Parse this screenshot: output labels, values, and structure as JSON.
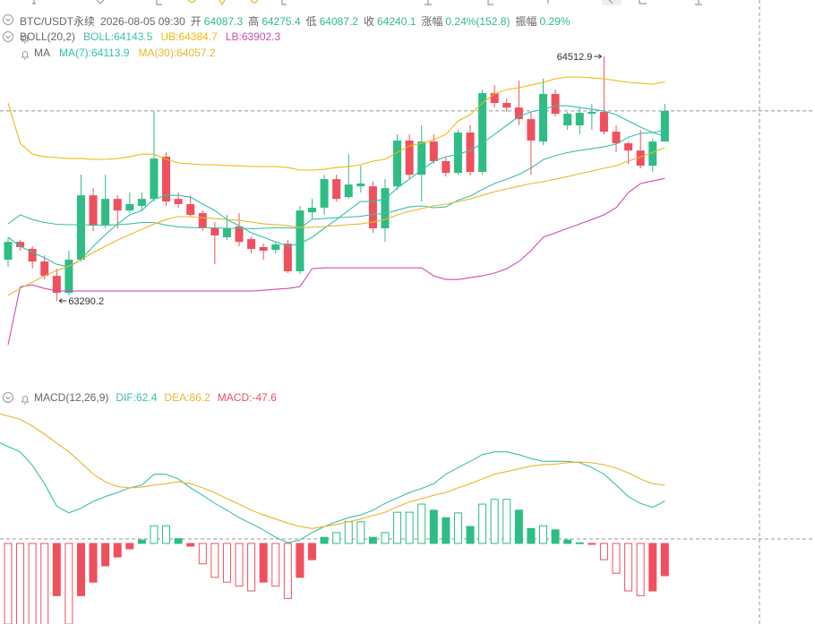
{
  "header": {
    "symbol": "BTC/USDT永续",
    "time": "2026-08-05 09:30",
    "open_label": "开",
    "open": "64087.3",
    "high_label": "高",
    "high": "64275.4",
    "low_label": "低",
    "low": "64087.2",
    "close_label": "收",
    "close": "64240.1",
    "change_label": "涨幅",
    "change": "0.24%(152.8)",
    "amplitude_label": "振幅",
    "amplitude": "0.29%"
  },
  "boll_legend": {
    "name": "BOLL(20,2)",
    "mid": "BOLL:64143.5",
    "ub": "UB:64384.7",
    "lb": "LB:63902.3"
  },
  "ma_legend": {
    "name": "MA",
    "ma7": "MA(7):64113.9",
    "ma30": "MA(30):64057.2"
  },
  "macd_legend": {
    "name": "MACD(12,26,9)",
    "dif": "DIF:62.4",
    "dea": "DEA:86.2",
    "macd": "MACD:-47.6"
  },
  "chart_data": [
    {
      "type": "candlestick",
      "up_color": "#2ebd85",
      "down_color": "#f0505e",
      "open": [
        63496,
        63585,
        63550,
        63487,
        63415,
        63330,
        63496,
        63818,
        63666,
        63800,
        63742,
        63765,
        63800,
        64011,
        63800,
        63774,
        63729,
        63653,
        63608,
        63662,
        63599,
        63559,
        63545,
        63576,
        63438,
        63733,
        63756,
        63899,
        63809,
        63863,
        63863,
        63653,
        63863,
        64092,
        63921,
        64087,
        63989,
        63930,
        64132,
        63935,
        64329,
        64280,
        64257,
        64199,
        64087,
        64325,
        64168,
        64168,
        64226,
        64235,
        64136,
        64078,
        64042,
        63966,
        64087.3
      ],
      "high": [
        63608,
        63594,
        63563,
        63518,
        63451,
        63541,
        63921,
        63854,
        63921,
        63818,
        63832,
        63832,
        64239,
        64033,
        63832,
        63818,
        63742,
        63684,
        63720,
        63729,
        63612,
        63576,
        63585,
        63594,
        63765,
        63800,
        63921,
        63921,
        64024,
        63966,
        63886,
        63899,
        64123,
        64123,
        64168,
        64123,
        64011,
        64145,
        64168,
        64347,
        64369,
        64302,
        64392,
        64235,
        64401,
        64347,
        64235,
        64257,
        64275,
        64512.9,
        64168,
        64087,
        64145,
        64101,
        64275.4
      ],
      "low": [
        63460,
        63541,
        63451,
        63397,
        63290.2,
        63317,
        63487,
        63639,
        63653,
        63653,
        63729,
        63742,
        63787,
        63765,
        63756,
        63711,
        63639,
        63473,
        63594,
        63563,
        63527,
        63496,
        63527,
        63429,
        63424,
        63697,
        63720,
        63787,
        63800,
        63832,
        63630,
        63585,
        63845,
        63899,
        63787,
        63975,
        63912,
        63921,
        63917,
        63921,
        64257,
        64235,
        64168,
        63921,
        64069,
        64213,
        64145,
        64123,
        64145,
        64123,
        64033,
        63975,
        63953,
        63935,
        64087.2
      ],
      "close": [
        63585,
        63559,
        63487,
        63415,
        63330,
        63496,
        63818,
        63666,
        63800,
        63742,
        63774,
        63800,
        64002,
        63787,
        63774,
        63720,
        63653,
        63617,
        63653,
        63585,
        63550,
        63541,
        63572,
        63438,
        63742,
        63756,
        63899,
        63800,
        63872,
        63877,
        63653,
        63854,
        64092,
        63921,
        64087,
        63989,
        63930,
        64132,
        63935,
        64329,
        64280,
        64257,
        64199,
        64092,
        64325,
        64226,
        64226,
        64231,
        64235,
        64136,
        64078,
        64042,
        63966,
        64087,
        64240.1
      ],
      "series": [
        {
          "color": "#f0b90b",
          "values": [
            64280,
            64078,
            64024,
            64011,
            64007,
            64002,
            64002,
            63998,
            63998,
            64002,
            64011,
            64024,
            64024,
            63998,
            63980,
            63975,
            63971,
            63971,
            63966,
            63966,
            63962,
            63962,
            63962,
            63957,
            63944,
            63944,
            63948,
            63957,
            63962,
            63971,
            63989,
            63998,
            64033,
            64065,
            64078,
            64096,
            64123,
            64190,
            64222,
            64280,
            64325,
            64347,
            64356,
            64369,
            64383,
            64401,
            64410,
            64410,
            64405,
            64401,
            64392,
            64383,
            64379,
            64374,
            64384.7
          ]
        },
        {
          "color": "#3cc0a8",
          "values": [
            63675,
            63720,
            63697,
            63682,
            63673,
            63671,
            63671,
            63669,
            63669,
            63671,
            63675,
            63682,
            63682,
            63669,
            63660,
            63657,
            63655,
            63655,
            63653,
            63653,
            63651,
            63653,
            63655,
            63655,
            63653,
            63698,
            63702,
            63706,
            63709,
            63713,
            63722,
            63727,
            63744,
            63760,
            63765,
            63756,
            63760,
            63794,
            63814,
            63848,
            63877,
            63899,
            63922,
            63955,
            63996,
            64016,
            64032,
            64043,
            64051,
            64061,
            64074,
            64108,
            64128,
            64132,
            64143.5
          ]
        },
        {
          "color": "#c94fb4",
          "values": [
            63070,
            63361,
            63370,
            63352,
            63339,
            63339,
            63339,
            63339,
            63339,
            63339,
            63339,
            63339,
            63339,
            63339,
            63339,
            63339,
            63339,
            63339,
            63339,
            63339,
            63339,
            63343,
            63348,
            63352,
            63361,
            63451,
            63455,
            63455,
            63455,
            63455,
            63455,
            63455,
            63455,
            63455,
            63455,
            63415,
            63397,
            63397,
            63406,
            63415,
            63429,
            63451,
            63487,
            63541,
            63608,
            63630,
            63653,
            63675,
            63697,
            63720,
            63756,
            63832,
            63877,
            63890,
            63902.3
          ]
        },
        {
          "color": "#2fc1b0",
          "values": [
            63608,
            63563,
            63532,
            63505,
            63473,
            63460,
            63496,
            63563,
            63621,
            63675,
            63720,
            63742,
            63800,
            63818,
            63818,
            63809,
            63774,
            63742,
            63697,
            63666,
            63630,
            63608,
            63585,
            63563,
            63576,
            63608,
            63653,
            63697,
            63742,
            63787,
            63787,
            63800,
            63854,
            63899,
            63944,
            63989,
            64011,
            64024,
            64042,
            64078,
            64123,
            64168,
            64213,
            64235,
            64248,
            64266,
            64266,
            64257,
            64248,
            64239,
            64222,
            64190,
            64159,
            64132,
            64113.9
          ]
        },
        {
          "color": "#e8b730",
          "values": [
            63317,
            63352,
            63384,
            63415,
            63442,
            63464,
            63496,
            63532,
            63563,
            63594,
            63621,
            63648,
            63675,
            63697,
            63711,
            63711,
            63706,
            63702,
            63697,
            63693,
            63684,
            63675,
            63671,
            63666,
            63657,
            63657,
            63662,
            63666,
            63671,
            63675,
            63684,
            63697,
            63720,
            63738,
            63751,
            63765,
            63774,
            63787,
            63800,
            63818,
            63836,
            63850,
            63863,
            63877,
            63886,
            63899,
            63912,
            63926,
            63939,
            63953,
            63966,
            63989,
            64011,
            64033,
            64057.2
          ]
        }
      ],
      "annotations": {
        "high": "64512.9",
        "low": "63290.2"
      }
    },
    {
      "type": "macd",
      "up_color": "#2ebd85",
      "down_color": "#f0505e",
      "values": [
        -119,
        -120,
        -122,
        -125,
        -77,
        -119,
        -77,
        -57,
        -33,
        -20,
        -8,
        5,
        26,
        26,
        7,
        -4,
        -30,
        -50,
        -57,
        -63,
        -70,
        -57,
        -63,
        -81,
        -50,
        -24,
        9,
        16,
        32,
        32,
        9,
        16,
        46,
        46,
        58,
        49,
        38,
        45,
        25,
        58,
        65,
        65,
        49,
        22,
        26,
        20,
        5,
        1,
        -1,
        -24,
        -44,
        -70,
        -77,
        -70,
        -47.6
      ],
      "series": [
        {
          "color": "#3cc0a8",
          "values": [
            148,
            135,
            115,
            88,
            55,
            45,
            52,
            62,
            69,
            75,
            82,
            86,
            102,
            102,
            95,
            82,
            71,
            59,
            49,
            38,
            29,
            20,
            9,
            1,
            5,
            16,
            25,
            32,
            38,
            42,
            49,
            59,
            67,
            75,
            81,
            88,
            102,
            112,
            121,
            131,
            135,
            135,
            131,
            125,
            121,
            121,
            121,
            119,
            112,
            102,
            86,
            69,
            59,
            53,
            62.4
          ]
        },
        {
          "color": "#e8b730",
          "values": [
            191,
            183,
            173,
            161,
            148,
            135,
            119,
            102,
            91,
            84,
            82,
            83,
            86,
            88,
            91,
            88,
            82,
            75,
            66,
            58,
            49,
            42,
            36,
            30,
            25,
            22,
            25,
            28,
            32,
            36,
            41,
            46,
            54,
            61,
            66,
            71,
            75,
            82,
            88,
            95,
            102,
            106,
            110,
            114,
            116,
            117,
            119,
            120,
            119,
            116,
            111,
            104,
            95,
            88,
            86.2
          ]
        }
      ]
    }
  ]
}
